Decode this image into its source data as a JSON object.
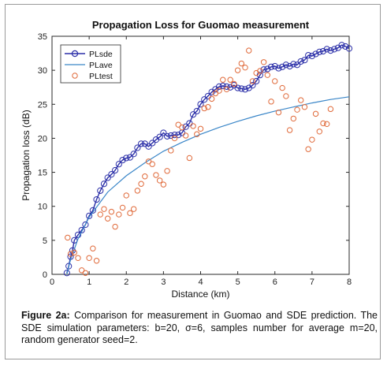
{
  "chart_data": {
    "type": "line+scatter",
    "title": "Propagation Loss for Guomao measurement",
    "xlabel": "Distance (km)",
    "ylabel": "Propagation loss (dB)",
    "xlim": [
      0,
      8
    ],
    "ylim": [
      0,
      35
    ],
    "xticks": [
      0,
      1,
      2,
      3,
      4,
      5,
      6,
      7,
      8
    ],
    "yticks": [
      0,
      5,
      10,
      15,
      20,
      25,
      30,
      35
    ],
    "grid": false,
    "legend_position": "top-left",
    "legend": [
      "PLsde",
      "PLave",
      "PLtest"
    ],
    "colors": {
      "PLsde": "#2b2fa8",
      "PLave": "#3a86c8",
      "PLtest": "#e06a3a"
    },
    "series": [
      {
        "name": "PLsde",
        "style": "line-with-circle-markers",
        "points": [
          [
            0.4,
            0.2
          ],
          [
            0.45,
            1.2
          ],
          [
            0.5,
            2.6
          ],
          [
            0.55,
            3.5
          ],
          [
            0.6,
            5.0
          ],
          [
            0.7,
            5.8
          ],
          [
            0.8,
            6.5
          ],
          [
            0.9,
            7.3
          ],
          [
            1.0,
            8.6
          ],
          [
            1.1,
            9.4
          ],
          [
            1.2,
            11.0
          ],
          [
            1.3,
            12.3
          ],
          [
            1.4,
            13.3
          ],
          [
            1.5,
            14.2
          ],
          [
            1.6,
            14.7
          ],
          [
            1.7,
            15.3
          ],
          [
            1.8,
            16.2
          ],
          [
            1.9,
            16.8
          ],
          [
            2.0,
            17.1
          ],
          [
            2.1,
            17.2
          ],
          [
            2.2,
            17.7
          ],
          [
            2.3,
            18.6
          ],
          [
            2.4,
            19.2
          ],
          [
            2.5,
            19.2
          ],
          [
            2.6,
            18.8
          ],
          [
            2.7,
            19.3
          ],
          [
            2.8,
            19.8
          ],
          [
            2.9,
            20.2
          ],
          [
            3.0,
            20.8
          ],
          [
            3.1,
            20.3
          ],
          [
            3.2,
            20.4
          ],
          [
            3.3,
            20.5
          ],
          [
            3.4,
            20.5
          ],
          [
            3.5,
            20.8
          ],
          [
            3.6,
            21.7
          ],
          [
            3.7,
            22.2
          ],
          [
            3.8,
            23.5
          ],
          [
            3.9,
            24.0
          ],
          [
            4.0,
            25.0
          ],
          [
            4.1,
            25.7
          ],
          [
            4.2,
            26.2
          ],
          [
            4.3,
            26.8
          ],
          [
            4.4,
            27.2
          ],
          [
            4.5,
            27.6
          ],
          [
            4.6,
            27.7
          ],
          [
            4.7,
            27.6
          ],
          [
            4.8,
            27.5
          ],
          [
            4.9,
            27.8
          ],
          [
            5.0,
            27.4
          ],
          [
            5.1,
            27.3
          ],
          [
            5.2,
            27.2
          ],
          [
            5.3,
            27.4
          ],
          [
            5.4,
            27.8
          ],
          [
            5.5,
            28.4
          ],
          [
            5.6,
            29.3
          ],
          [
            5.7,
            30.1
          ],
          [
            5.8,
            30.2
          ],
          [
            5.9,
            30.5
          ],
          [
            6.0,
            30.6
          ],
          [
            6.1,
            30.3
          ],
          [
            6.2,
            30.5
          ],
          [
            6.3,
            30.8
          ],
          [
            6.4,
            30.6
          ],
          [
            6.5,
            30.9
          ],
          [
            6.6,
            30.8
          ],
          [
            6.7,
            31.3
          ],
          [
            6.8,
            31.5
          ],
          [
            6.9,
            32.2
          ],
          [
            7.0,
            32.1
          ],
          [
            7.1,
            32.4
          ],
          [
            7.2,
            32.7
          ],
          [
            7.3,
            32.8
          ],
          [
            7.4,
            33.1
          ],
          [
            7.5,
            32.9
          ],
          [
            7.6,
            33.1
          ],
          [
            7.7,
            33.3
          ],
          [
            7.8,
            33.7
          ],
          [
            7.9,
            33.5
          ],
          [
            8.0,
            33.2
          ]
        ]
      },
      {
        "name": "PLave",
        "style": "line",
        "points": [
          [
            0.4,
            0.0
          ],
          [
            0.5,
            2.2
          ],
          [
            0.7,
            5.2
          ],
          [
            1.0,
            8.4
          ],
          [
            1.5,
            12.1
          ],
          [
            2.0,
            14.5
          ],
          [
            2.5,
            16.4
          ],
          [
            3.0,
            18.1
          ],
          [
            3.5,
            19.4
          ],
          [
            4.0,
            20.6
          ],
          [
            4.5,
            21.6
          ],
          [
            5.0,
            22.5
          ],
          [
            5.5,
            23.3
          ],
          [
            6.0,
            24.0
          ],
          [
            6.5,
            24.6
          ],
          [
            7.0,
            25.2
          ],
          [
            7.5,
            25.7
          ],
          [
            8.0,
            26.1
          ]
        ]
      },
      {
        "name": "PLtest",
        "style": "circle-markers",
        "points": [
          [
            0.42,
            5.4
          ],
          [
            0.5,
            3.0
          ],
          [
            0.6,
            3.2
          ],
          [
            0.7,
            2.4
          ],
          [
            0.8,
            0.6
          ],
          [
            0.9,
            0.2
          ],
          [
            1.0,
            2.4
          ],
          [
            1.1,
            3.8
          ],
          [
            1.2,
            2.0
          ],
          [
            1.3,
            8.8
          ],
          [
            1.4,
            9.6
          ],
          [
            1.5,
            8.2
          ],
          [
            1.6,
            9.2
          ],
          [
            1.7,
            7.0
          ],
          [
            1.8,
            8.8
          ],
          [
            1.9,
            9.8
          ],
          [
            2.0,
            11.6
          ],
          [
            2.1,
            9.0
          ],
          [
            2.2,
            9.6
          ],
          [
            2.3,
            12.3
          ],
          [
            2.4,
            13.3
          ],
          [
            2.5,
            14.4
          ],
          [
            2.6,
            16.6
          ],
          [
            2.7,
            16.2
          ],
          [
            2.8,
            14.6
          ],
          [
            2.9,
            13.8
          ],
          [
            3.0,
            13.2
          ],
          [
            3.1,
            15.2
          ],
          [
            3.2,
            18.2
          ],
          [
            3.3,
            20.0
          ],
          [
            3.4,
            22.0
          ],
          [
            3.5,
            21.6
          ],
          [
            3.6,
            20.4
          ],
          [
            3.7,
            17.1
          ],
          [
            3.8,
            21.8
          ],
          [
            3.9,
            20.6
          ],
          [
            4.0,
            21.4
          ],
          [
            4.1,
            24.4
          ],
          [
            4.2,
            24.6
          ],
          [
            4.3,
            25.8
          ],
          [
            4.4,
            26.6
          ],
          [
            4.5,
            27.0
          ],
          [
            4.6,
            28.6
          ],
          [
            4.7,
            27.2
          ],
          [
            4.8,
            28.6
          ],
          [
            4.9,
            28.0
          ],
          [
            5.0,
            30.0
          ],
          [
            5.1,
            31.0
          ],
          [
            5.2,
            30.4
          ],
          [
            5.3,
            32.9
          ],
          [
            5.4,
            28.4
          ],
          [
            5.5,
            29.6
          ],
          [
            5.6,
            29.9
          ],
          [
            5.7,
            31.2
          ],
          [
            5.8,
            29.3
          ],
          [
            5.9,
            25.4
          ],
          [
            6.0,
            28.4
          ],
          [
            6.1,
            23.8
          ],
          [
            6.2,
            27.4
          ],
          [
            6.3,
            26.2
          ],
          [
            6.4,
            21.2
          ],
          [
            6.5,
            22.9
          ],
          [
            6.6,
            24.2
          ],
          [
            6.7,
            25.6
          ],
          [
            6.8,
            24.6
          ],
          [
            6.9,
            18.4
          ],
          [
            7.0,
            19.8
          ],
          [
            7.1,
            23.6
          ],
          [
            7.2,
            21.0
          ],
          [
            7.3,
            22.2
          ],
          [
            7.4,
            22.1
          ],
          [
            7.5,
            24.3
          ]
        ]
      }
    ]
  },
  "caption": {
    "label": "Figure 2a:",
    "text": " Comparison for measurement in Guomao and SDE prediction. The SDE simulation parameters: b=20, σ=6, samples number for average m=20, random generator seed=2."
  }
}
